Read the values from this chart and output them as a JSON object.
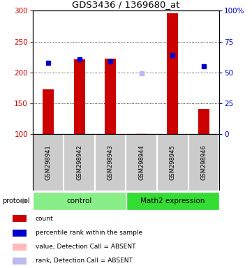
{
  "title": "GDS3436 / 1369680_at",
  "samples": [
    "GSM298941",
    "GSM298942",
    "GSM298943",
    "GSM298944",
    "GSM298945",
    "GSM298946"
  ],
  "bar_values": [
    172,
    221,
    222,
    101,
    296,
    141
  ],
  "bar_color": "#cc0000",
  "blue_dot_values": [
    215,
    221,
    218,
    199,
    228,
    210
  ],
  "bar_absent": [
    false,
    false,
    false,
    true,
    false,
    false
  ],
  "dot_absent": [
    false,
    false,
    false,
    true,
    false,
    false
  ],
  "ylim_left": [
    100,
    300
  ],
  "yticks_left": [
    100,
    150,
    200,
    250,
    300
  ],
  "left_axis_color": "#cc0000",
  "right_axis_color": "#0000cc",
  "right_ticks": [
    0,
    25,
    50,
    75,
    100
  ],
  "right_tick_labels": [
    "0",
    "25",
    "50",
    "75",
    "100%"
  ],
  "groups": [
    {
      "label": "control",
      "n": 3,
      "color": "#88ee88"
    },
    {
      "label": "Math2 expression",
      "n": 3,
      "color": "#33dd33"
    }
  ],
  "protocol_label": "protocol",
  "legend": [
    {
      "color": "#cc0000",
      "label": "count"
    },
    {
      "color": "#0000cc",
      "label": "percentile rank within the sample"
    },
    {
      "color": "#ffbbbb",
      "label": "value, Detection Call = ABSENT"
    },
    {
      "color": "#bbbbee",
      "label": "rank, Detection Call = ABSENT"
    }
  ],
  "bar_width": 0.35,
  "background_color": "#ffffff",
  "absent_bar_color": "#ffbbbb",
  "absent_dot_color": "#bbbbee",
  "solid_dot_color": "#0000cc"
}
